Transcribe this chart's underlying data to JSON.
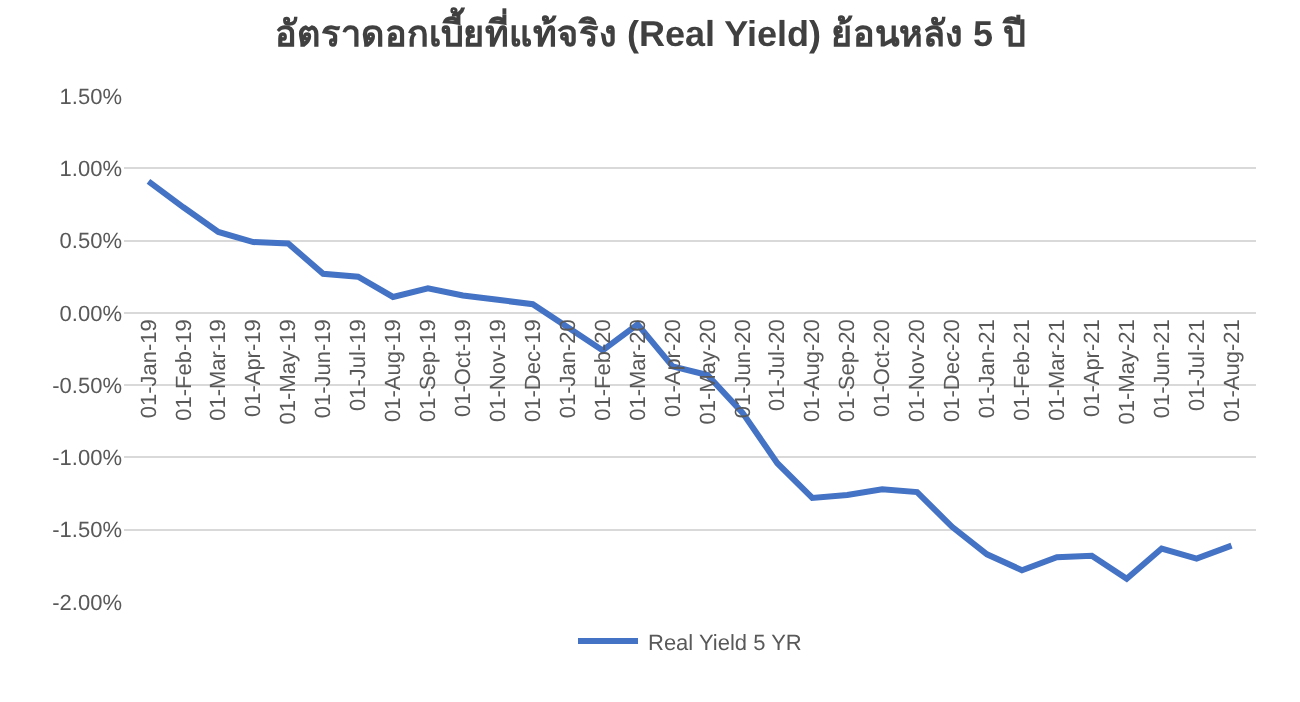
{
  "chart_data": {
    "type": "line",
    "title": "อัตราดอกเบี้ยที่แท้จริง (Real Yield) ย้อนหลัง 5 ปี",
    "categories": [
      "01-Jan-19",
      "01-Feb-19",
      "01-Mar-19",
      "01-Apr-19",
      "01-May-19",
      "01-Jun-19",
      "01-Jul-19",
      "01-Aug-19",
      "01-Sep-19",
      "01-Oct-19",
      "01-Nov-19",
      "01-Dec-19",
      "01-Jan-20",
      "01-Feb-20",
      "01-Mar-20",
      "01-Apr-20",
      "01-May-20",
      "01-Jun-20",
      "01-Jul-20",
      "01-Aug-20",
      "01-Sep-20",
      "01-Oct-20",
      "01-Nov-20",
      "01-Dec-20",
      "01-Jan-21",
      "01-Feb-21",
      "01-Mar-21",
      "01-Apr-21",
      "01-May-21",
      "01-Jun-21",
      "01-Jul-21",
      "01-Aug-21"
    ],
    "series": [
      {
        "name": "Real Yield 5 YR",
        "color": "#4472c4",
        "values": [
          0.91,
          0.73,
          0.56,
          0.49,
          0.48,
          0.27,
          0.25,
          0.11,
          0.17,
          0.12,
          0.09,
          0.06,
          -0.1,
          -0.26,
          -0.08,
          -0.37,
          -0.43,
          -0.69,
          -1.04,
          -1.28,
          -1.26,
          -1.22,
          -1.24,
          -1.48,
          -1.67,
          -1.78,
          -1.69,
          -1.68,
          -1.84,
          -1.63,
          -1.7,
          -1.61
        ]
      }
    ],
    "ylim": [
      -2,
      1.5
    ],
    "yticks": [
      {
        "value": -2,
        "label": "-2.00%"
      },
      {
        "value": -1.5,
        "label": "-1.50%"
      },
      {
        "value": -1,
        "label": "-1.00%"
      },
      {
        "value": -0.5,
        "label": "-0.50%"
      },
      {
        "value": 0,
        "label": "0.00%"
      },
      {
        "value": 0.5,
        "label": "0.50%"
      },
      {
        "value": 1,
        "label": "1.00%"
      },
      {
        "value": 1.5,
        "label": "1.50%"
      }
    ],
    "grid": "y",
    "legend": "bottom",
    "marker": "none",
    "line_style": "solid"
  }
}
